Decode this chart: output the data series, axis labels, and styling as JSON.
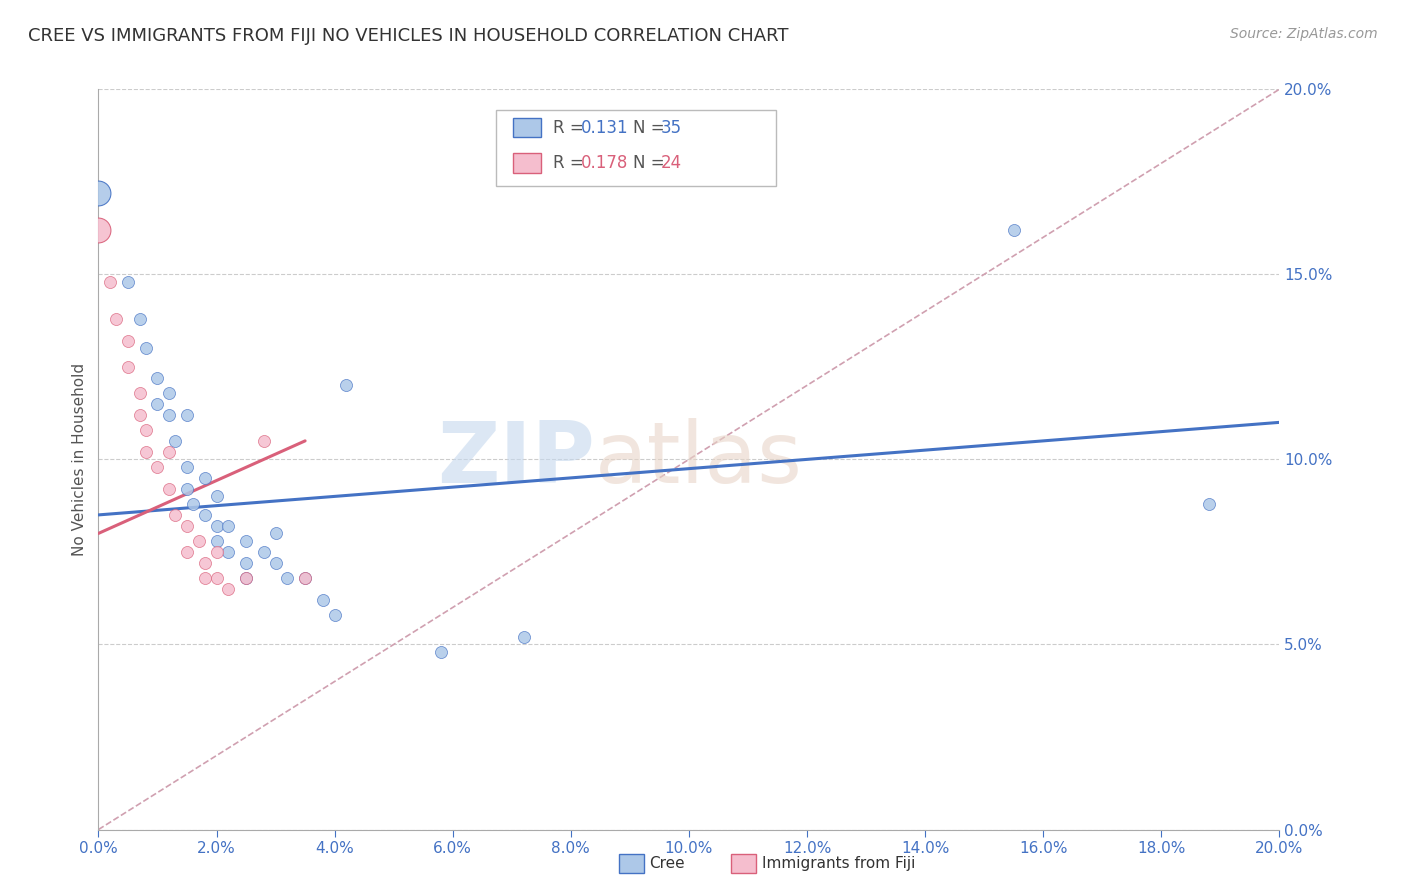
{
  "title": "CREE VS IMMIGRANTS FROM FIJI NO VEHICLES IN HOUSEHOLD CORRELATION CHART",
  "source": "Source: ZipAtlas.com",
  "ylabel": "No Vehicles in Household",
  "legend_box": {
    "r1": "0.131",
    "n1": "35",
    "r2": "0.178",
    "n2": "24"
  },
  "xmin": 0.0,
  "xmax": 0.2,
  "ymin": 0.0,
  "ymax": 0.2,
  "cree_color": "#adc8e8",
  "fiji_color": "#f5bece",
  "cree_line_color": "#4472c4",
  "fiji_line_color": "#d9607a",
  "diag_line_color": "#d0a0b0",
  "cree_scatter": [
    [
      0.0,
      0.172
    ],
    [
      0.005,
      0.148
    ],
    [
      0.007,
      0.138
    ],
    [
      0.008,
      0.13
    ],
    [
      0.01,
      0.122
    ],
    [
      0.01,
      0.115
    ],
    [
      0.012,
      0.112
    ],
    [
      0.012,
      0.118
    ],
    [
      0.013,
      0.105
    ],
    [
      0.015,
      0.112
    ],
    [
      0.015,
      0.098
    ],
    [
      0.015,
      0.092
    ],
    [
      0.016,
      0.088
    ],
    [
      0.018,
      0.095
    ],
    [
      0.018,
      0.085
    ],
    [
      0.02,
      0.09
    ],
    [
      0.02,
      0.082
    ],
    [
      0.02,
      0.078
    ],
    [
      0.022,
      0.082
    ],
    [
      0.022,
      0.075
    ],
    [
      0.025,
      0.078
    ],
    [
      0.025,
      0.072
    ],
    [
      0.025,
      0.068
    ],
    [
      0.028,
      0.075
    ],
    [
      0.03,
      0.08
    ],
    [
      0.03,
      0.072
    ],
    [
      0.032,
      0.068
    ],
    [
      0.035,
      0.068
    ],
    [
      0.038,
      0.062
    ],
    [
      0.04,
      0.058
    ],
    [
      0.042,
      0.12
    ],
    [
      0.058,
      0.048
    ],
    [
      0.072,
      0.052
    ],
    [
      0.155,
      0.162
    ],
    [
      0.188,
      0.088
    ]
  ],
  "fiji_scatter": [
    [
      0.0,
      0.162
    ],
    [
      0.002,
      0.148
    ],
    [
      0.003,
      0.138
    ],
    [
      0.005,
      0.132
    ],
    [
      0.005,
      0.125
    ],
    [
      0.007,
      0.118
    ],
    [
      0.007,
      0.112
    ],
    [
      0.008,
      0.108
    ],
    [
      0.008,
      0.102
    ],
    [
      0.01,
      0.098
    ],
    [
      0.012,
      0.102
    ],
    [
      0.012,
      0.092
    ],
    [
      0.013,
      0.085
    ],
    [
      0.015,
      0.082
    ],
    [
      0.015,
      0.075
    ],
    [
      0.017,
      0.078
    ],
    [
      0.018,
      0.072
    ],
    [
      0.018,
      0.068
    ],
    [
      0.02,
      0.075
    ],
    [
      0.02,
      0.068
    ],
    [
      0.022,
      0.065
    ],
    [
      0.025,
      0.068
    ],
    [
      0.028,
      0.105
    ],
    [
      0.035,
      0.068
    ]
  ],
  "cree_line_x": [
    0.0,
    0.2
  ],
  "cree_line_y": [
    0.085,
    0.11
  ],
  "fiji_line_x": [
    0.0,
    0.035
  ],
  "fiji_line_y": [
    0.08,
    0.105
  ],
  "diag_line_x": [
    0.0,
    0.2
  ],
  "diag_line_y": [
    0.0,
    0.2
  ],
  "marker_size_default": 75,
  "marker_size_large": 320,
  "title_fontsize": 13,
  "source_fontsize": 10,
  "tick_fontsize": 11,
  "legend_fontsize": 12,
  "ylabel_fontsize": 11
}
